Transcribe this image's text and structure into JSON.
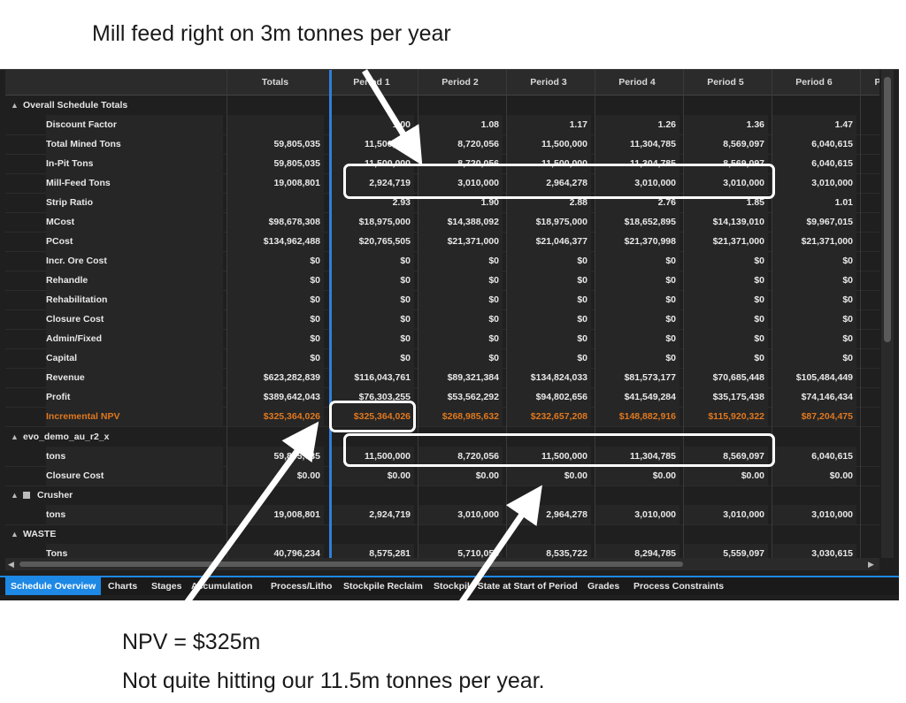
{
  "annotations": {
    "top": "Mill feed right on 3m tonnes per year",
    "bottom_line1": "NPV = $325m",
    "bottom_line2": "Not quite hitting our 11.5m tonnes per year."
  },
  "grid": {
    "headers": [
      "Totals",
      "Period 1",
      "Period 2",
      "Period 3",
      "Period 4",
      "Period 5",
      "Period 6",
      "P"
    ],
    "groups": {
      "overall": "Overall Schedule Totals",
      "evo": "evo_demo_au_r2_x",
      "crusher": "Crusher",
      "waste": "WASTE"
    },
    "rows": [
      {
        "label": "Discount Factor",
        "values": [
          "",
          "1.00",
          "1.08",
          "1.17",
          "1.26",
          "1.36",
          "1.47"
        ]
      },
      {
        "label": "Total Mined Tons",
        "values": [
          "59,805,035",
          "11,500,000",
          "8,720,056",
          "11,500,000",
          "11,304,785",
          "8,569,097",
          "6,040,615"
        ]
      },
      {
        "label": "In-Pit Tons",
        "values": [
          "59,805,035",
          "11,500,000",
          "8,720,056",
          "11,500,000",
          "11,304,785",
          "8,569,097",
          "6,040,615"
        ]
      },
      {
        "label": "Mill-Feed Tons",
        "values": [
          "19,008,801",
          "2,924,719",
          "3,010,000",
          "2,964,278",
          "3,010,000",
          "3,010,000",
          "3,010,000"
        ]
      },
      {
        "label": "Strip Ratio",
        "values": [
          "",
          "2.93",
          "1.90",
          "2.88",
          "2.76",
          "1.85",
          "1.01"
        ]
      },
      {
        "label": "MCost",
        "values": [
          "$98,678,308",
          "$18,975,000",
          "$14,388,092",
          "$18,975,000",
          "$18,652,895",
          "$14,139,010",
          "$9,967,015"
        ]
      },
      {
        "label": "PCost",
        "values": [
          "$134,962,488",
          "$20,765,505",
          "$21,371,000",
          "$21,046,377",
          "$21,370,998",
          "$21,371,000",
          "$21,371,000"
        ]
      },
      {
        "label": "Incr. Ore Cost",
        "values": [
          "$0",
          "$0",
          "$0",
          "$0",
          "$0",
          "$0",
          "$0"
        ]
      },
      {
        "label": "Rehandle",
        "values": [
          "$0",
          "$0",
          "$0",
          "$0",
          "$0",
          "$0",
          "$0"
        ]
      },
      {
        "label": "Rehabilitation",
        "values": [
          "$0",
          "$0",
          "$0",
          "$0",
          "$0",
          "$0",
          "$0"
        ]
      },
      {
        "label": "Closure Cost",
        "values": [
          "$0",
          "$0",
          "$0",
          "$0",
          "$0",
          "$0",
          "$0"
        ]
      },
      {
        "label": "Admin/Fixed",
        "values": [
          "$0",
          "$0",
          "$0",
          "$0",
          "$0",
          "$0",
          "$0"
        ]
      },
      {
        "label": "Capital",
        "values": [
          "$0",
          "$0",
          "$0",
          "$0",
          "$0",
          "$0",
          "$0"
        ]
      },
      {
        "label": "Revenue",
        "values": [
          "$623,282,839",
          "$116,043,761",
          "$89,321,384",
          "$134,824,033",
          "$81,573,177",
          "$70,685,448",
          "$105,484,449"
        ]
      },
      {
        "label": "Profit",
        "values": [
          "$389,642,043",
          "$76,303,255",
          "$53,562,292",
          "$94,802,656",
          "$41,549,284",
          "$35,175,438",
          "$74,146,434"
        ]
      },
      {
        "label": "Incremental NPV",
        "values": [
          "$325,364,026",
          "$325,364,026",
          "$268,985,632",
          "$232,657,208",
          "$148,882,916",
          "$115,920,322",
          "$87,204,475"
        ]
      }
    ],
    "evo_rows": [
      {
        "label": "tons",
        "values": [
          "59,805,035",
          "11,500,000",
          "8,720,056",
          "11,500,000",
          "11,304,785",
          "8,569,097",
          "6,040,615"
        ]
      },
      {
        "label": "Closure Cost",
        "values": [
          "$0.00",
          "$0.00",
          "$0.00",
          "$0.00",
          "$0.00",
          "$0.00",
          "$0.00"
        ]
      }
    ],
    "crusher_rows": [
      {
        "label": "tons",
        "values": [
          "19,008,801",
          "2,924,719",
          "3,010,000",
          "2,964,278",
          "3,010,000",
          "3,010,000",
          "3,010,000"
        ]
      }
    ],
    "waste_rows": [
      {
        "label": "Tons",
        "values": [
          "40,796,234",
          "8,575,281",
          "5,710,056",
          "8,535,722",
          "8,294,785",
          "5,559,097",
          "3,030,615"
        ]
      }
    ]
  },
  "tabs": [
    "Schedule Overview",
    "Charts",
    "Stages",
    "Accumulation",
    "Process/Litho",
    "Stockpile Reclaim",
    "Stockpile State at Start of Period",
    "Grades",
    "Process Constraints"
  ],
  "colors": {
    "accent": "#1e88e5",
    "npv": "#e0781e",
    "background": "#1f1f1f"
  },
  "icons": {
    "collapse": "triangle-up-icon",
    "scroll_left": "arrow-left-icon",
    "scroll_right": "arrow-right-icon"
  }
}
